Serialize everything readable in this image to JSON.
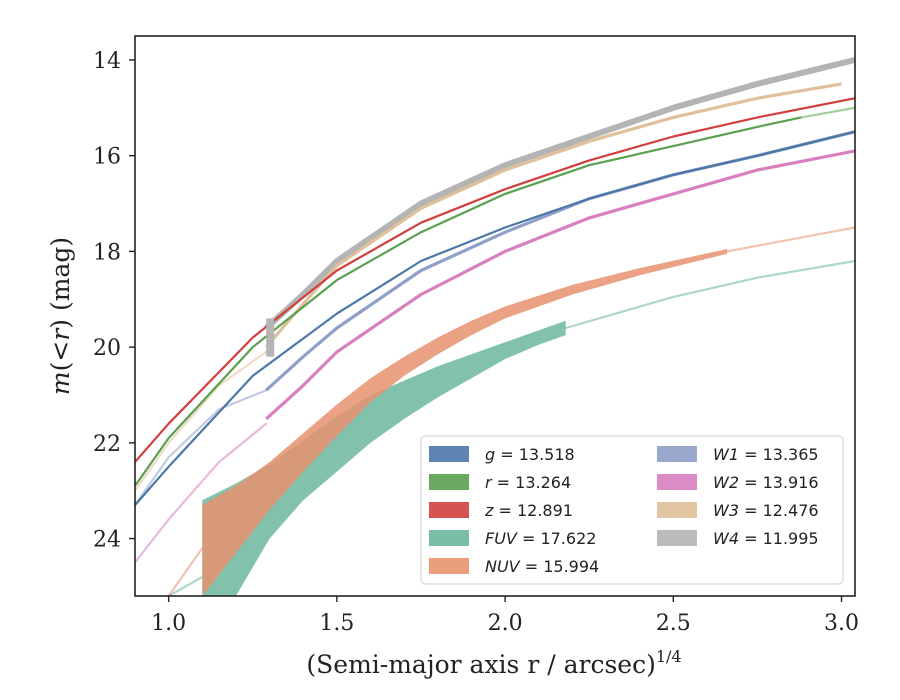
{
  "chart_data": {
    "type": "line",
    "xlabel": "(Semi-major axis r / arcsec)",
    "xlabel_exponent": "1/4",
    "ylabel": "m(<r) (mag)",
    "ylabel_suffix": "(mag)",
    "xlim": [
      0.9,
      3.04
    ],
    "ylim": [
      25.2,
      13.5
    ],
    "y_inverted": true,
    "xticks": [
      1.0,
      1.5,
      2.0,
      2.5,
      3.0
    ],
    "xtick_labels": [
      "1.0",
      "1.5",
      "2.0",
      "2.5",
      "3.0"
    ],
    "yticks": [
      14,
      16,
      18,
      20,
      22,
      24
    ],
    "ytick_labels": [
      "14",
      "16",
      "18",
      "20",
      "22",
      "24"
    ],
    "grid": false,
    "legend": {
      "location": "lower-right",
      "columns": 2
    },
    "series": [
      {
        "name": "g",
        "label_value": "13.518",
        "color": "#4c78a8",
        "width": "thin",
        "x": [
          0.9,
          1.0,
          1.25,
          1.5,
          1.75,
          2.0,
          2.25,
          2.5,
          2.75,
          3.04
        ],
        "y": [
          23.3,
          22.5,
          20.6,
          19.3,
          18.2,
          17.5,
          16.9,
          16.4,
          16.0,
          15.5
        ]
      },
      {
        "name": "r",
        "label_value": "13.264",
        "color": "#59a14f",
        "width": "thin",
        "x": [
          0.9,
          1.0,
          1.25,
          1.5,
          1.75,
          2.0,
          2.25,
          2.5,
          2.75,
          2.88
        ],
        "y": [
          22.9,
          21.9,
          20.0,
          18.6,
          17.6,
          16.8,
          16.2,
          15.8,
          15.4,
          15.2
        ]
      },
      {
        "name": "z",
        "label_value": "12.891",
        "color": "#d1403f",
        "width": "thin",
        "x": [
          0.9,
          1.0,
          1.25,
          1.5,
          1.75,
          2.0,
          2.25,
          2.5,
          2.75,
          3.04
        ],
        "y": [
          22.4,
          21.6,
          19.8,
          18.4,
          17.4,
          16.7,
          16.1,
          15.6,
          15.2,
          14.8
        ]
      },
      {
        "name": "FUV",
        "label_value": "17.622",
        "color": "#6cb79f",
        "width": "band",
        "x": [
          1.1,
          1.2,
          1.3,
          1.4,
          1.5,
          1.6,
          1.7,
          1.8,
          1.9,
          2.0,
          2.1,
          2.18
        ],
        "y_upper": [
          23.2,
          22.85,
          22.45,
          21.95,
          21.45,
          21.0,
          20.7,
          20.4,
          20.15,
          19.9,
          19.65,
          19.45
        ],
        "y_lower": [
          25.2,
          25.2,
          24.0,
          23.2,
          22.6,
          22.0,
          21.5,
          21.05,
          20.65,
          20.25,
          19.95,
          19.75
        ]
      },
      {
        "name": "NUV",
        "label_value": "15.994",
        "color": "#e8926f",
        "width": "band",
        "x": [
          1.1,
          1.2,
          1.3,
          1.4,
          1.5,
          1.6,
          1.7,
          1.8,
          1.9,
          2.0,
          2.2,
          2.4,
          2.66
        ],
        "y_upper": [
          23.3,
          22.9,
          22.4,
          21.8,
          21.2,
          20.65,
          20.2,
          19.8,
          19.45,
          19.15,
          18.7,
          18.35,
          17.95
        ],
        "y_lower": [
          25.2,
          24.3,
          23.4,
          22.6,
          21.85,
          21.15,
          20.6,
          20.15,
          19.75,
          19.4,
          18.9,
          18.5,
          18.05
        ]
      },
      {
        "name": "W1",
        "label_value": "13.365",
        "color": "#8f9fc9",
        "width": "medium",
        "x": [
          1.29,
          1.4,
          1.5,
          1.75,
          2.0,
          2.25,
          2.5,
          2.75,
          3.04
        ],
        "y": [
          20.9,
          20.2,
          19.6,
          18.4,
          17.6,
          16.9,
          16.4,
          16.0,
          15.5
        ]
      },
      {
        "name": "W2",
        "label_value": "13.916",
        "color": "#d77fbf",
        "width": "medium",
        "x": [
          1.29,
          1.4,
          1.5,
          1.75,
          2.0,
          2.25,
          2.5,
          2.75,
          3.04
        ],
        "y": [
          21.5,
          20.8,
          20.1,
          18.9,
          18.0,
          17.3,
          16.8,
          16.3,
          15.9
        ]
      },
      {
        "name": "W3",
        "label_value": "12.476",
        "color": "#dfc09a",
        "width": "medium",
        "x": [
          1.29,
          1.4,
          1.5,
          1.75,
          2.0,
          2.25,
          2.5,
          2.75,
          3.0
        ],
        "y": [
          20.0,
          19.1,
          18.3,
          17.1,
          16.3,
          15.7,
          15.2,
          14.8,
          14.5
        ]
      },
      {
        "name": "W4",
        "label_value": "11.995",
        "color": "#b4b4b4",
        "width": "thick",
        "x": [
          1.29,
          1.4,
          1.5,
          1.75,
          2.0,
          2.25,
          2.5,
          2.75,
          3.04
        ],
        "y": [
          19.6,
          18.9,
          18.2,
          17.0,
          16.2,
          15.6,
          15.0,
          14.5,
          14.0
        ]
      }
    ],
    "extrapolated_tails": [
      {
        "series": "g",
        "color": "#4c78a8"
      },
      {
        "series": "r",
        "color": "#59a14f",
        "x": [
          2.88,
          3.04
        ],
        "y": [
          15.2,
          15.0
        ]
      },
      {
        "series": "FUV",
        "color": "#6cb79f",
        "x": [
          2.18,
          2.5,
          2.75,
          3.04
        ],
        "y": [
          19.6,
          18.95,
          18.55,
          18.2
        ]
      },
      {
        "series": "NUV",
        "color": "#e8926f",
        "x": [
          2.66,
          2.85,
          3.04
        ],
        "y": [
          18.0,
          17.75,
          17.5
        ]
      },
      {
        "series": "W1",
        "color": "#8f9fc9",
        "x": [
          0.9,
          1.0,
          1.15,
          1.29
        ],
        "y": [
          23.3,
          22.3,
          21.3,
          20.9
        ]
      },
      {
        "series": "W2",
        "color": "#d77fbf",
        "x": [
          0.9,
          1.0,
          1.15,
          1.29
        ],
        "y": [
          24.5,
          23.6,
          22.4,
          21.6
        ]
      },
      {
        "series": "W3",
        "color": "#dfc09a",
        "x": [
          0.9,
          1.0,
          1.15,
          1.29
        ],
        "y": [
          23.0,
          22.0,
          20.8,
          20.1
        ]
      },
      {
        "series": "FUV-inner",
        "color": "#6cb79f",
        "x": [
          1.0,
          1.1
        ],
        "y": [
          25.2,
          24.8
        ]
      },
      {
        "series": "NUV-inner",
        "color": "#e8926f",
        "x": [
          1.0,
          1.1
        ],
        "y": [
          25.2,
          24.2
        ]
      }
    ],
    "w4_inner_patch": {
      "color": "#b4b4b4",
      "x": 1.29,
      "y_top": 19.4,
      "y_bottom": 20.2
    }
  }
}
